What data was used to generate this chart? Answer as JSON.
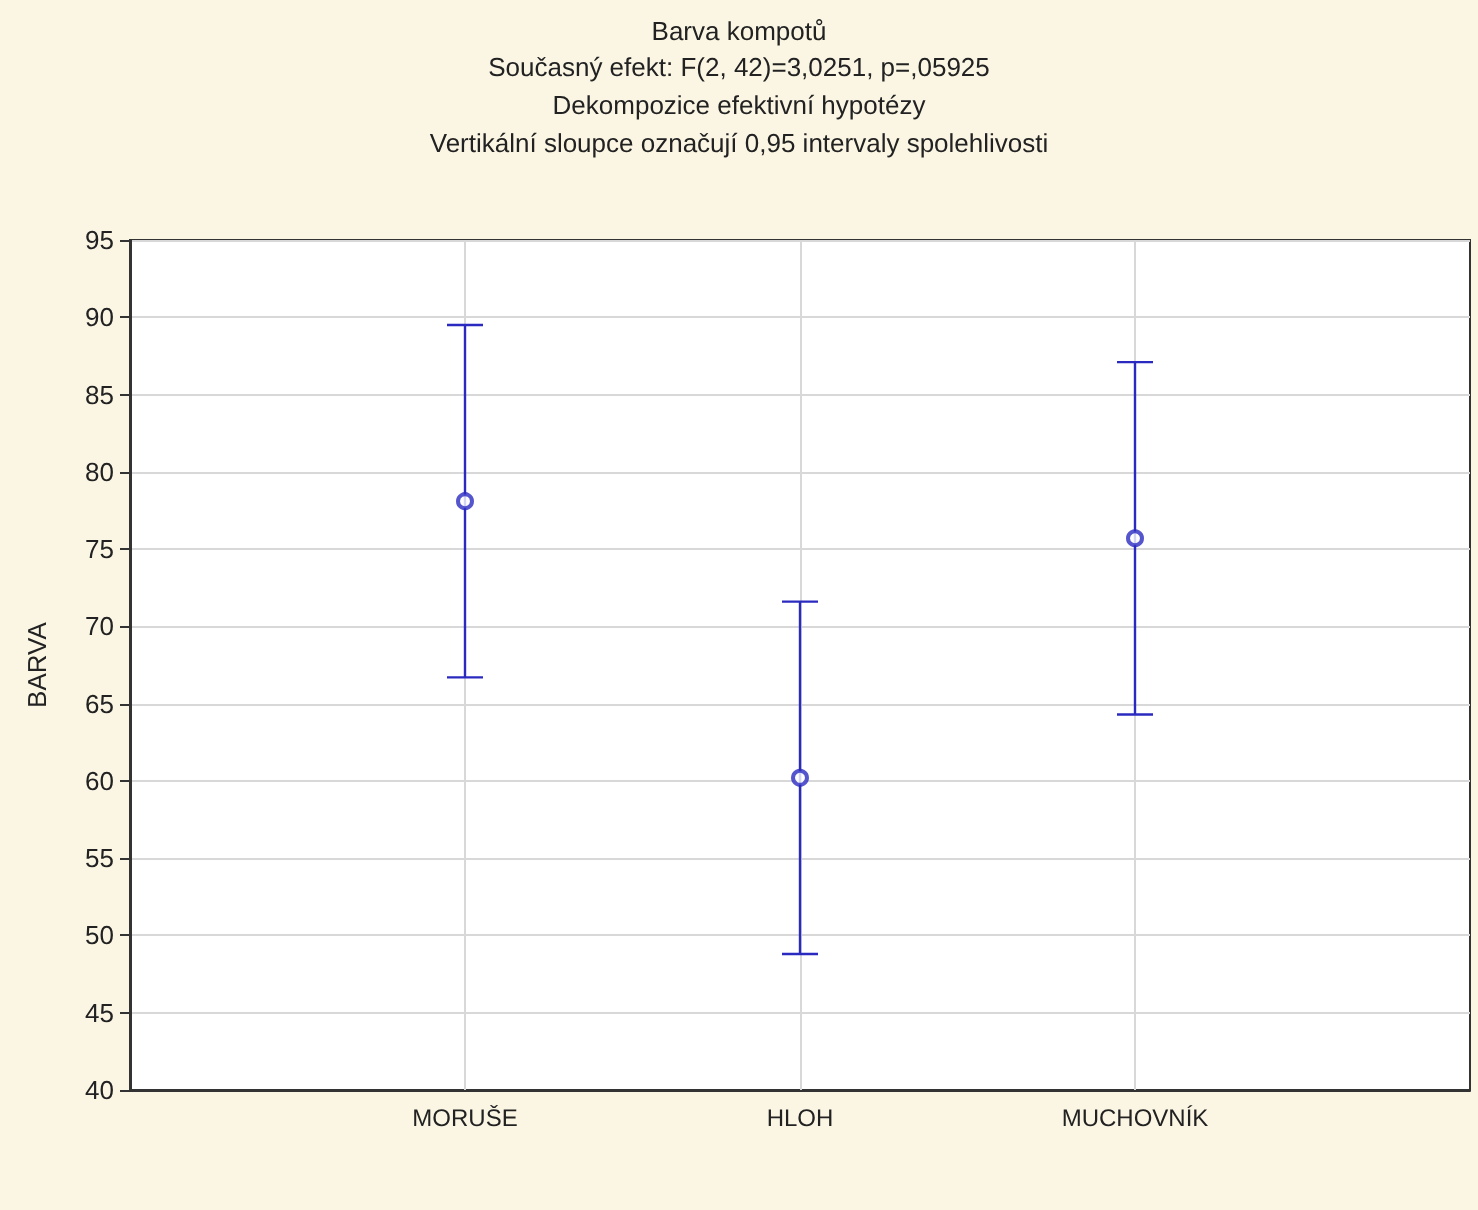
{
  "chart_data": {
    "type": "scatter",
    "title": "Barva kompotů",
    "subtitle": "Současný efekt: F(2, 42)=3,0251, p=,05925\nDekompozice efektivní hypotézy\nVertikální sloupce označují 0,95 intervaly spolehlivosti",
    "ylabel": "BARVA",
    "categories": [
      "MORUŠE",
      "HLOH",
      "MUCHOVNÍK"
    ],
    "series": [
      {
        "color": "#2a2ac0",
        "values": [
          78.1,
          60.2,
          75.7
        ],
        "errors": [
          11.4,
          11.4,
          11.4
        ]
      }
    ],
    "ylim": [
      40,
      95
    ],
    "yticks": [
      40,
      45,
      50,
      55,
      60,
      65,
      70,
      75,
      80,
      85,
      90,
      95
    ],
    "grid": true,
    "marker": "circle"
  }
}
